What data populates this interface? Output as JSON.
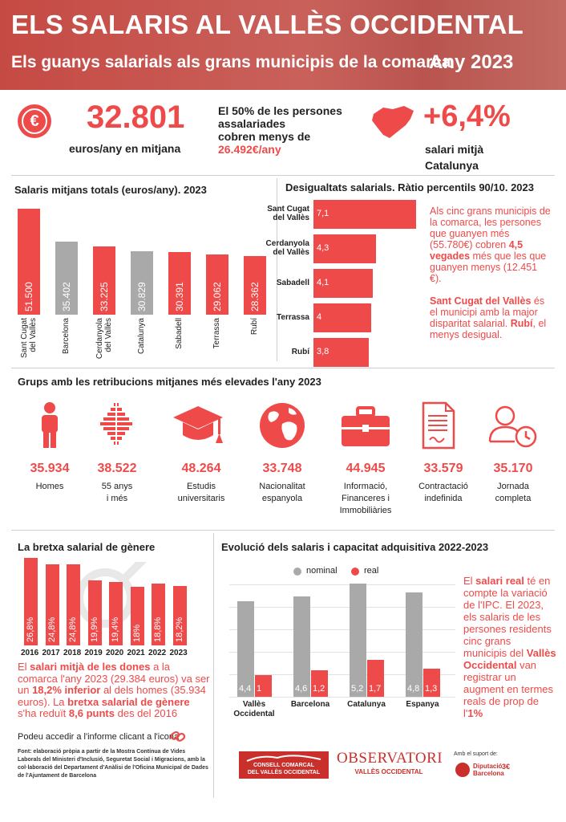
{
  "header": {
    "title": "ELS SALARIS AL VALLÈS OCCIDENTAL",
    "subtitle": "Els guanys salarials als grans municipis de la comarca",
    "year": "Any  2023"
  },
  "kpis": {
    "avg_value": "32.801",
    "avg_label": "euros/any en mitjana",
    "median_text_1": "El 50% de les persones",
    "median_text_2": "assalariades",
    "median_text_3": "cobren menys de",
    "median_value": "26.492€/any",
    "growth_value": "+6,4%",
    "growth_label_1": "salari mitjà",
    "growth_label_2": "Catalunya"
  },
  "colors": {
    "accent": "#ef4a4a",
    "grey": "#a9a9a9"
  },
  "chart_data": [
    {
      "type": "bar",
      "title": "Salaris mitjans totals (euros/any). 2023",
      "categories": [
        "Sant Cugat del Vallès",
        "Barcelona",
        "Cerdanyola del Vallès",
        "Catalunya",
        "Sabadell",
        "Terrassa",
        "Rubí"
      ],
      "values": [
        51500,
        35402,
        33225,
        30829,
        30391,
        29062,
        28362
      ],
      "value_labels": [
        "51.500",
        "35.402",
        "33.225",
        "30.829",
        "30.391",
        "29.062",
        "28.362"
      ],
      "highlight": [
        true,
        false,
        true,
        false,
        true,
        true,
        true
      ],
      "ylim": [
        0,
        55000
      ]
    },
    {
      "type": "bar",
      "orientation": "horizontal",
      "title": "Desigualtats salarials. Ràtio percentils 90/10. 2023",
      "categories": [
        "Sant Cugat del Vallès",
        "Cerdanyola del Vallès",
        "Sabadell",
        "Terrassa",
        "Rubí"
      ],
      "values": [
        7.1,
        4.3,
        4.1,
        4.0,
        3.8
      ],
      "value_labels": [
        "7,1",
        "4,3",
        "4,1",
        "4",
        "3,8"
      ],
      "xlim": [
        0,
        7.1
      ]
    },
    {
      "type": "bar",
      "title": "La bretxa salarial de gènere",
      "categories": [
        "2016",
        "2017",
        "2018",
        "2019",
        "2020",
        "2021",
        "2022",
        "2023"
      ],
      "values": [
        26.8,
        24.8,
        24.8,
        19.9,
        19.4,
        18.0,
        18.8,
        18.2
      ],
      "value_labels": [
        "26,8%",
        "24,8%",
        "24,8%",
        "19,9%",
        "19,4%",
        "18%",
        "18,8%",
        "18,2%"
      ],
      "ylim": [
        0,
        27
      ]
    },
    {
      "type": "bar",
      "title": "Evolució dels salaris i capacitat adquisitiva 2022-2023",
      "categories": [
        "Vallès Occidental",
        "Barcelona",
        "Catalunya",
        "Espanya"
      ],
      "series": [
        {
          "name": "nominal",
          "values": [
            4.4,
            4.6,
            5.2,
            4.8
          ],
          "labels": [
            "4,4",
            "4,6",
            "5,2",
            "4,8"
          ]
        },
        {
          "name": "real",
          "values": [
            1.0,
            1.2,
            1.7,
            1.3
          ],
          "labels": [
            "1",
            "1,2",
            "1,7",
            "1,3"
          ]
        }
      ],
      "ylim": [
        0,
        5.2
      ]
    }
  ],
  "bar_cat_lines": [
    [
      "Sant Cugat",
      "del Vallès"
    ],
    [
      "Barcelona"
    ],
    [
      "Cerdanyola",
      "del Vallès"
    ],
    [
      "Catalunya"
    ],
    [
      "Sabadell"
    ],
    [
      "Terrassa"
    ],
    [
      "Rubí"
    ]
  ],
  "ineq_cat_lines": [
    [
      "Sant Cugat",
      "del Vallès"
    ],
    [
      "Cerdanyola",
      "del Vallès"
    ],
    [
      "Sabadell"
    ],
    [
      "Terrassa"
    ],
    [
      "Rubí"
    ]
  ],
  "evol_cat_lines": [
    [
      "Vallès",
      "Occidental"
    ],
    [
      "Barcelona"
    ],
    [
      "Catalunya"
    ],
    [
      "Espanya"
    ]
  ],
  "ineq_text": {
    "p1": "Als cinc grans municipis de la comarca, les persones que guanyen més (55.780€) cobren ",
    "p1_bold": "4,5 vegades",
    "p1_end": " més que les que guanyen menys (12.451 €).",
    "p2_bold1": "Sant Cugat del Vallès",
    "p2": " és el municipi amb la major disparitat salarial. ",
    "p2_bold2": "Rubí",
    "p2_end": ", el menys desigual."
  },
  "groups": {
    "title": "Grups amb les retribucions mitjanes més elevades l'any 2023",
    "items": [
      {
        "icon": "person-icon",
        "value": "35.934",
        "label1": "Homes",
        "label2": "",
        "label3": ""
      },
      {
        "icon": "age-pyramid-icon",
        "value": "38.522",
        "label1": "55 anys",
        "label2": "i més",
        "label3": ""
      },
      {
        "icon": "graduation-cap-icon",
        "value": "48.264",
        "label1": "Estudis",
        "label2": "universitaris",
        "label3": ""
      },
      {
        "icon": "globe-icon",
        "value": "33.748",
        "label1": "Nacionalitat",
        "label2": "espanyola",
        "label3": ""
      },
      {
        "icon": "briefcase-icon",
        "value": "44.945",
        "label1": "Informació,",
        "label2": "Financeres i",
        "label3": "Immobiliàries"
      },
      {
        "icon": "contract-icon",
        "value": "33.579",
        "label1": "Contractació",
        "label2": "indefinida",
        "label3": ""
      },
      {
        "icon": "user-clock-icon",
        "value": "35.170",
        "label1": "Jornada",
        "label2": "completa",
        "label3": ""
      }
    ]
  },
  "gap_text": {
    "t1": "El ",
    "b1": "salari mitjà de les dones",
    "t2": " a la comarca l'any 2023 (29.384 euros) va ser un ",
    "b2": "18,2% inferior",
    "t3": " al dels homes (35.934 euros). La ",
    "b3": "bretxa salarial de gènere",
    "t4": " s'ha reduït ",
    "b4": "8,6 punts",
    "t5": " des del 2016"
  },
  "evol_text": {
    "t1": "El ",
    "b1": "salari real",
    "t2": " té en compte la variació de l'IPC. El 2023, els salaris de les persones residents cinc grans municipis del ",
    "b2": "Vallès Occidental",
    "t3": " van registrar un augment en termes reals de prop de l'",
    "b3": "1%"
  },
  "footer": {
    "link_text": "Podeu accedir a l'informe clicant a l'icona",
    "source": "Font: elaboració pròpia a partir de la Mostra Contínua de Vides Laborals del Ministeri d'Inclusió, Seguretat Social i Migracions, amb la col·laboració del Departament d'Anàlisi de l'Oficina Municipal de Dades de l'Ajuntament de Barcelona",
    "consell_1": "CONSELL COMARCAL",
    "consell_2": "DEL VALLÈS OCCIDENTAL",
    "obs_1": "OBSERVATORI",
    "obs_2": "VALLÈS OCCIDENTAL",
    "support": "Amb el suport de:",
    "dipu_1": "Diputació",
    "dipu_2": "Barcelona"
  }
}
